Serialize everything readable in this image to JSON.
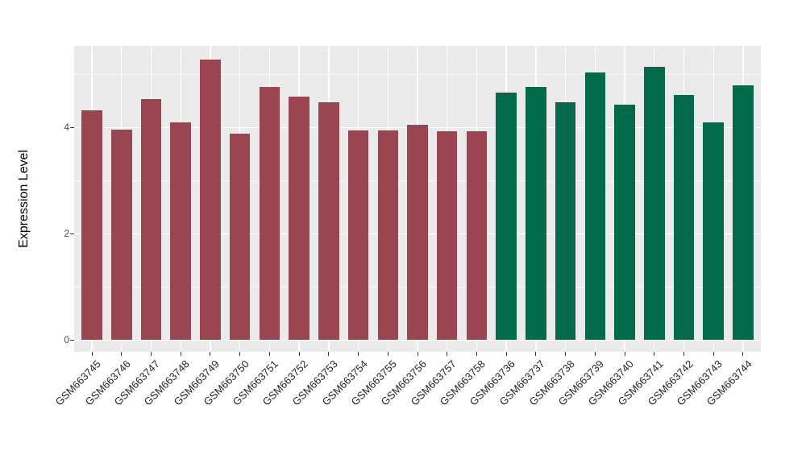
{
  "chart_data": {
    "type": "bar",
    "title": "",
    "xlabel": "",
    "ylabel": "Expression Level",
    "categories": [
      "GSM663745",
      "GSM663746",
      "GSM663747",
      "GSM663748",
      "GSM663749",
      "GSM663750",
      "GSM663751",
      "GSM663752",
      "GSM663753",
      "GSM663754",
      "GSM663755",
      "GSM663756",
      "GSM663757",
      "GSM663758",
      "GSM663736",
      "GSM663737",
      "GSM663738",
      "GSM663739",
      "GSM663740",
      "GSM663741",
      "GSM663742",
      "GSM663743",
      "GSM663744"
    ],
    "values": [
      4.33,
      3.96,
      4.54,
      4.1,
      5.28,
      3.89,
      4.77,
      4.58,
      4.47,
      3.94,
      3.94,
      4.05,
      3.93,
      3.93,
      4.66,
      4.77,
      4.47,
      5.04,
      4.43,
      5.15,
      4.62,
      4.1,
      4.8
    ],
    "groups": [
      "red",
      "red",
      "red",
      "red",
      "red",
      "red",
      "red",
      "red",
      "red",
      "red",
      "red",
      "red",
      "red",
      "red",
      "green",
      "green",
      "green",
      "green",
      "green",
      "green",
      "green",
      "green",
      "green"
    ],
    "group_colors": {
      "red": "#9B4452",
      "green": "#03694B"
    },
    "yticks": [
      0,
      2,
      4
    ],
    "yticks_minor": [
      1,
      3,
      5
    ],
    "ylim": [
      -0.221,
      5.537
    ],
    "grid": true,
    "legend": "none"
  },
  "style": {
    "panel_bg": "#EBEBEB",
    "grid_color": "#FFFFFF",
    "tick_color": "#333333",
    "ytick_label_color": "#4D4D4D",
    "xtick_label_color": "#262626",
    "figure_bg": "#FFFFFF"
  }
}
